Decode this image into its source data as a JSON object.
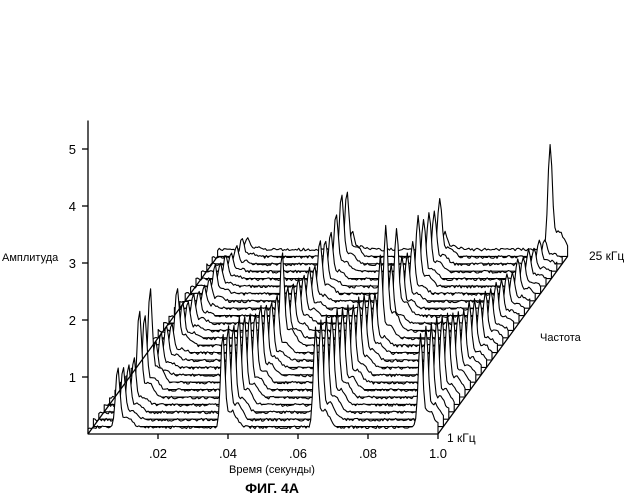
{
  "figure_caption": "ФИГ. 4А",
  "chart_data": {
    "type": "waterfall-3d",
    "xlabel": "Время (секунды)",
    "ylabel": "Амплитуда",
    "zlabel": "Частота",
    "x_ticks": [
      ".02",
      ".04",
      ".06",
      ".08",
      "1.0"
    ],
    "y_ticks": [
      "1",
      "2",
      "3",
      "4",
      "5"
    ],
    "z_first_label": "1 кГц",
    "z_last_label": "25 кГц",
    "xlim": [
      0.0,
      0.1
    ],
    "ylim": [
      0,
      5.5
    ],
    "frequency_count": 25,
    "grid": false,
    "peak_times": [
      0.0085,
      0.0385,
      0.065,
      0.095
    ],
    "series": [
      {
        "frequency_khz": 1,
        "peaks": [
          1.0,
          1.6,
          1.7,
          1.6
        ]
      },
      {
        "frequency_khz": 2,
        "peaks": [
          0.9,
          1.6,
          1.7,
          1.6
        ]
      },
      {
        "frequency_khz": 3,
        "peaks": [
          0.8,
          1.5,
          1.6,
          1.5
        ]
      },
      {
        "frequency_khz": 4,
        "peaks": [
          0.8,
          1.5,
          1.5,
          1.5
        ]
      },
      {
        "frequency_khz": 5,
        "peaks": [
          1.5,
          1.4,
          1.5,
          1.4
        ]
      },
      {
        "frequency_khz": 6,
        "peaks": [
          1.3,
          1.3,
          1.4,
          1.3
        ]
      },
      {
        "frequency_khz": 7,
        "peaks": [
          1.6,
          1.2,
          1.3,
          1.2
        ]
      },
      {
        "frequency_khz": 8,
        "peaks": [
          0.6,
          1.2,
          1.2,
          1.1
        ]
      },
      {
        "frequency_khz": 9,
        "peaks": [
          0.6,
          1.1,
          1.2,
          1.0
        ]
      },
      {
        "frequency_khz": 10,
        "peaks": [
          0.6,
          1.0,
          1.1,
          1.0
        ]
      },
      {
        "frequency_khz": 11,
        "peaks": [
          0.5,
          1.0,
          1.0,
          0.9
        ]
      },
      {
        "frequency_khz": 12,
        "peaks": [
          1.0,
          1.6,
          0.9,
          0.8
        ]
      },
      {
        "frequency_khz": 13,
        "peaks": [
          0.6,
          0.9,
          1.4,
          0.8
        ]
      },
      {
        "frequency_khz": 14,
        "peaks": [
          0.5,
          0.8,
          1.8,
          0.7
        ]
      },
      {
        "frequency_khz": 15,
        "peaks": [
          0.5,
          0.8,
          1.0,
          0.7
        ]
      },
      {
        "frequency_khz": 16,
        "peaks": [
          0.4,
          0.7,
          1.5,
          0.6
        ]
      },
      {
        "frequency_khz": 17,
        "peaks": [
          0.4,
          0.7,
          0.9,
          0.6
        ]
      },
      {
        "frequency_khz": 18,
        "peaks": [
          0.4,
          0.6,
          0.8,
          0.5
        ]
      },
      {
        "frequency_khz": 19,
        "peaks": [
          0.5,
          0.9,
          0.9,
          0.6
        ]
      },
      {
        "frequency_khz": 20,
        "peaks": [
          0.4,
          0.8,
          1.2,
          0.5
        ]
      },
      {
        "frequency_khz": 21,
        "peaks": [
          0.4,
          0.8,
          1.0,
          0.5
        ]
      },
      {
        "frequency_khz": 22,
        "peaks": [
          0.3,
          1.0,
          1.0,
          0.4
        ]
      },
      {
        "frequency_khz": 23,
        "peaks": [
          0.3,
          1.2,
          0.9,
          0.4
        ]
      },
      {
        "frequency_khz": 24,
        "peaks": [
          0.3,
          1.1,
          1.0,
          0.3
        ]
      },
      {
        "frequency_khz": 25,
        "peaks": [
          0.2,
          0.3,
          0.3,
          1.8
        ]
      }
    ]
  }
}
